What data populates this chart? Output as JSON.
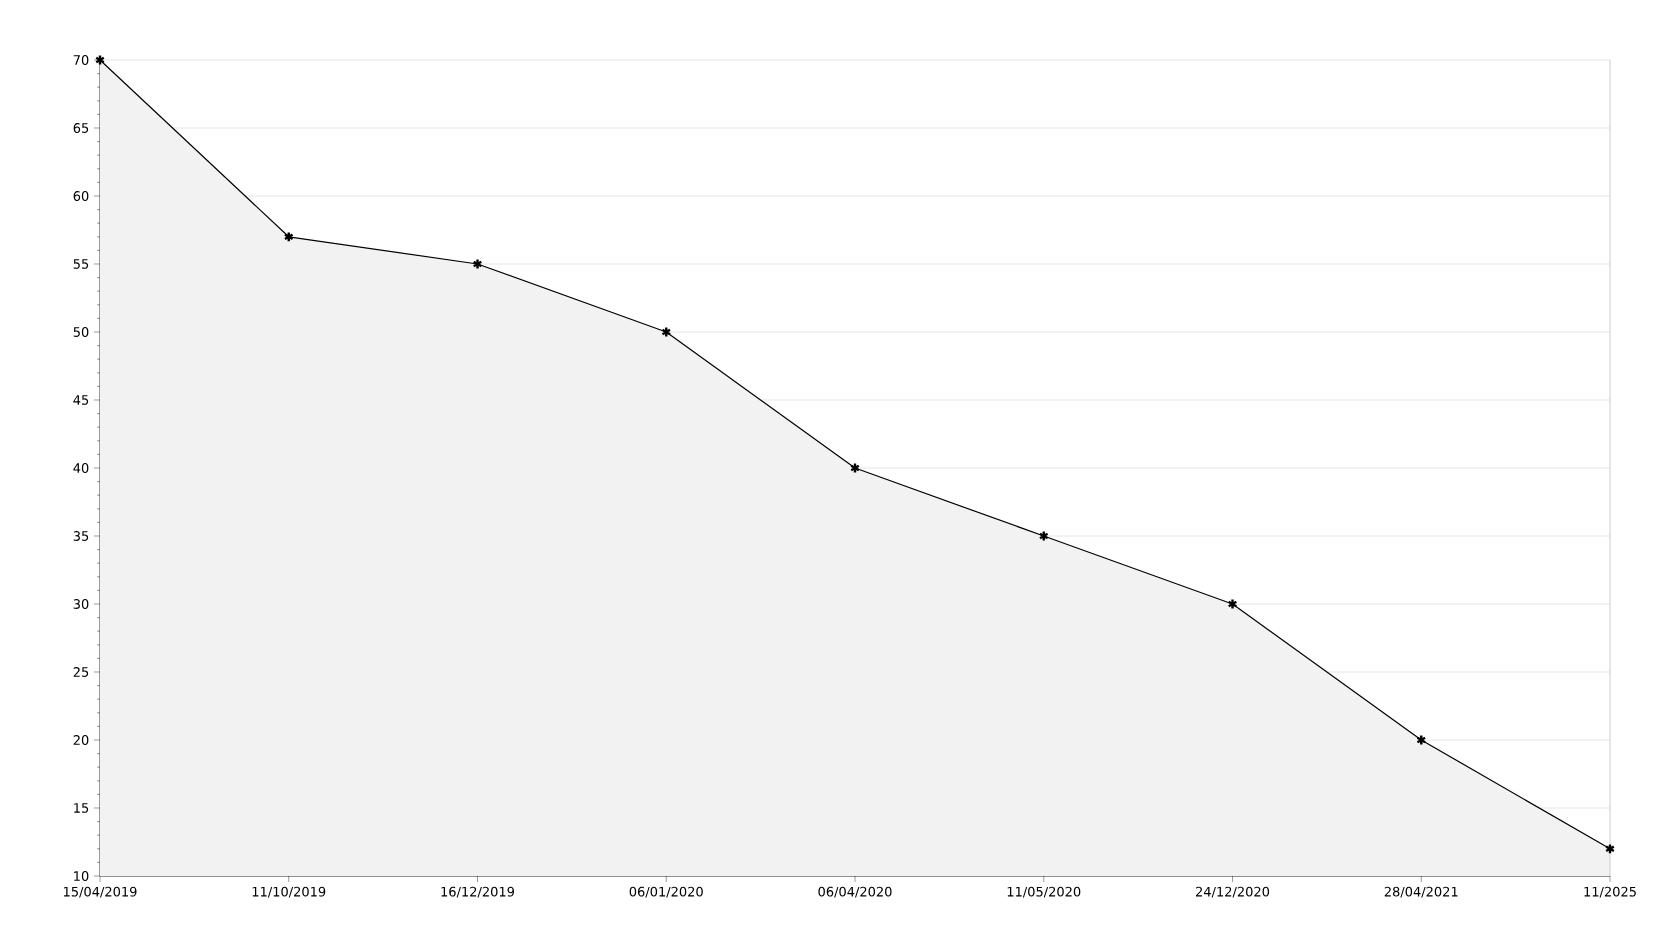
{
  "chart_data": {
    "type": "area",
    "categories": [
      "15/04/2019",
      "11/10/2019",
      "16/12/2019",
      "06/01/2020",
      "06/04/2020",
      "11/05/2020",
      "24/12/2020",
      "28/04/2021",
      "11/2025"
    ],
    "series": [
      {
        "color": "#000000",
        "values": [
          70,
          57,
          55,
          50,
          40,
          35,
          30,
          20,
          12
        ]
      }
    ],
    "ylim": [
      10,
      70
    ],
    "yticks": [
      10,
      15,
      20,
      25,
      30,
      35,
      40,
      45,
      50,
      55,
      60,
      65,
      70
    ],
    "grid": "y",
    "marker": "cross",
    "line_style": "solid"
  }
}
